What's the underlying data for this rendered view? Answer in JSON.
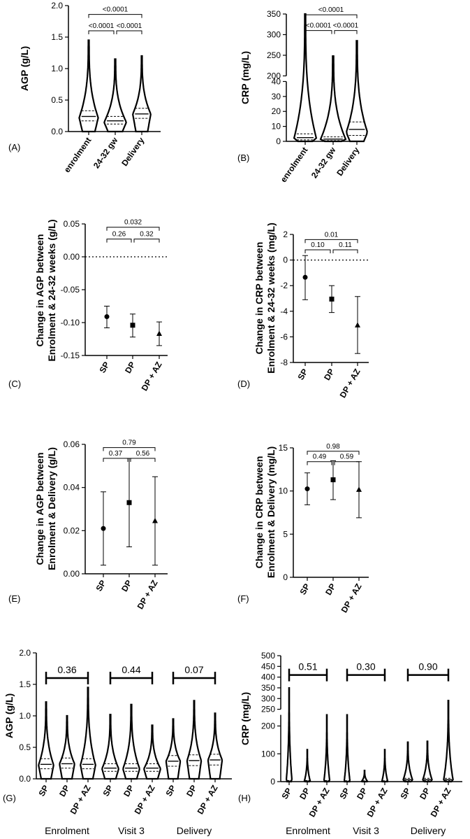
{
  "chart_data": [
    {
      "id": "A",
      "panel_label": "(A)",
      "type": "violin",
      "ylabel": "AGP (g/L)",
      "ylim": [
        0,
        2.0
      ],
      "yticks": [
        {
          "v": 0,
          "label": "0.0"
        },
        {
          "v": 0.5,
          "label": "0.5"
        },
        {
          "v": 1.0,
          "label": "1.0"
        },
        {
          "v": 1.5,
          "label": "1.5"
        },
        {
          "v": 2.0,
          "label": "2.0"
        }
      ],
      "categories": [
        "enrolment",
        "24-32 gw",
        "Delivery"
      ],
      "violins": [
        {
          "min": 0.0,
          "max": 1.45,
          "mode": 0.22,
          "w": 0.36,
          "q": [
            0.17,
            0.24,
            0.33
          ]
        },
        {
          "min": 0.0,
          "max": 1.15,
          "mode": 0.15,
          "w": 0.42,
          "q": [
            0.12,
            0.17,
            0.24
          ]
        },
        {
          "min": 0.0,
          "max": 1.2,
          "mode": 0.28,
          "w": 0.34,
          "q": [
            0.21,
            0.28,
            0.37
          ]
        }
      ],
      "brackets": [
        {
          "from": 0,
          "to": 2,
          "y": 1.86,
          "label": "<0.0001"
        },
        {
          "from": 0,
          "to": 1,
          "y": 1.6,
          "label": "<0.0001",
          "split": true
        },
        {
          "from": 1,
          "to": 2,
          "y": 1.6,
          "label": "<0.0001",
          "split": true
        }
      ]
    },
    {
      "id": "B",
      "panel_label": "(B)",
      "type": "violin",
      "ylabel": "CRP (mg/L)",
      "ylim": [
        0,
        350
      ],
      "broken_axis": [
        40,
        200
      ],
      "yticks": [
        {
          "v": 0,
          "label": "0"
        },
        {
          "v": 10,
          "label": "10"
        },
        {
          "v": 20,
          "label": "20"
        },
        {
          "v": 30,
          "label": "30"
        },
        {
          "v": 40,
          "label": "40"
        },
        {
          "v": 200,
          "label": "200"
        },
        {
          "v": 250,
          "label": "250"
        },
        {
          "v": 300,
          "label": "300"
        },
        {
          "v": 350,
          "label": "350"
        }
      ],
      "categories": [
        "enrolment",
        "24-32 gw",
        "Delivery"
      ],
      "violins": [
        {
          "min": 0,
          "max": 350,
          "mode": 2,
          "w": 0.4,
          "q": [
            1,
            2.5,
            5
          ]
        },
        {
          "min": 0,
          "max": 248,
          "mode": 1,
          "w": 0.46,
          "q": [
            0.5,
            1.5,
            3
          ]
        },
        {
          "min": 0,
          "max": 285,
          "mode": 6,
          "w": 0.38,
          "q": [
            4,
            8,
            13
          ]
        }
      ],
      "brackets": [
        {
          "from": 0,
          "to": 2,
          "y": 348,
          "label": "<0.0001"
        },
        {
          "from": 0,
          "to": 1,
          "y": 310,
          "label": "<0.0001",
          "split": true
        },
        {
          "from": 1,
          "to": 2,
          "y": 310,
          "label": "<0.0001",
          "split": true
        }
      ]
    },
    {
      "id": "C",
      "panel_label": "(C)",
      "type": "scatter_errorbar",
      "ylabel": [
        "Change in AGP between",
        "Enrolment & 24-32 weeks (g/L)"
      ],
      "ylim": [
        -0.15,
        0.05
      ],
      "yticks": [
        {
          "v": -0.15,
          "label": "-0.15"
        },
        {
          "v": -0.1,
          "label": "-0.10"
        },
        {
          "v": -0.05,
          "label": "-0.05"
        },
        {
          "v": 0,
          "label": "0.00"
        },
        {
          "v": 0.05,
          "label": "0.05"
        }
      ],
      "categories": [
        "SP",
        "DP",
        "DP + AZ"
      ],
      "points": [
        {
          "y": -0.091,
          "lo": -0.108,
          "hi": -0.075,
          "marker": "circle"
        },
        {
          "y": -0.104,
          "lo": -0.122,
          "hi": -0.087,
          "marker": "square"
        },
        {
          "y": -0.117,
          "lo": -0.135,
          "hi": -0.099,
          "marker": "triangle"
        }
      ],
      "ref_line": 0,
      "brackets": [
        {
          "from": 0,
          "to": 2,
          "y": 0.045,
          "label": "0.032"
        },
        {
          "from": 0,
          "to": 1,
          "y": 0.027,
          "label": "0.26",
          "split": true
        },
        {
          "from": 1,
          "to": 2,
          "y": 0.027,
          "label": "0.32",
          "split": true
        }
      ]
    },
    {
      "id": "D",
      "panel_label": "(D)",
      "type": "scatter_errorbar",
      "ylabel": [
        "Change in CRP between",
        "Enrolment & 24-32 weeks (mg/L)"
      ],
      "ylim": [
        -8,
        2
      ],
      "yticks": [
        {
          "v": -8,
          "label": "-8"
        },
        {
          "v": -6,
          "label": "-6"
        },
        {
          "v": -4,
          "label": "-4"
        },
        {
          "v": -2,
          "label": "-2"
        },
        {
          "v": 0,
          "label": "0"
        },
        {
          "v": 2,
          "label": "2"
        }
      ],
      "categories": [
        "SP",
        "DP",
        "DP + AZ"
      ],
      "points": [
        {
          "y": -1.35,
          "lo": -3.1,
          "hi": 0.35,
          "marker": "circle"
        },
        {
          "y": -3.05,
          "lo": -4.1,
          "hi": -2.0,
          "marker": "square"
        },
        {
          "y": -5.1,
          "lo": -7.3,
          "hi": -2.85,
          "marker": "triangle"
        }
      ],
      "ref_line": 0,
      "brackets": [
        {
          "from": 0,
          "to": 2,
          "y": 1.6,
          "label": "0.01"
        },
        {
          "from": 0,
          "to": 1,
          "y": 0.8,
          "label": "0.10",
          "split": true
        },
        {
          "from": 1,
          "to": 2,
          "y": 0.8,
          "label": "0.11",
          "split": true
        }
      ]
    },
    {
      "id": "E",
      "panel_label": "(E)",
      "type": "scatter_errorbar",
      "ylabel": [
        "Change in AGP between",
        "Enrolment & Delivery (g/L)"
      ],
      "ylim": [
        0,
        0.06
      ],
      "yticks": [
        {
          "v": 0,
          "label": "0.00"
        },
        {
          "v": 0.02,
          "label": "0.02"
        },
        {
          "v": 0.04,
          "label": "0.04"
        },
        {
          "v": 0.06,
          "label": "0.06"
        }
      ],
      "categories": [
        "SP",
        "DP",
        "DP + AZ"
      ],
      "points": [
        {
          "y": 0.021,
          "lo": 0.004,
          "hi": 0.038,
          "marker": "circle"
        },
        {
          "y": 0.033,
          "lo": 0.0125,
          "hi": 0.0535,
          "marker": "square"
        },
        {
          "y": 0.0245,
          "lo": 0.004,
          "hi": 0.045,
          "marker": "triangle"
        }
      ],
      "brackets": [
        {
          "from": 0,
          "to": 2,
          "y": 0.0585,
          "label": "0.79"
        },
        {
          "from": 0,
          "to": 1,
          "y": 0.0535,
          "label": "0.37",
          "split": true
        },
        {
          "from": 1,
          "to": 2,
          "y": 0.0535,
          "label": "0.56",
          "split": true
        }
      ]
    },
    {
      "id": "F",
      "panel_label": "(F)",
      "type": "scatter_errorbar",
      "ylabel": [
        "Change in CRP between",
        "Enrolment & Delivery (mg/L)"
      ],
      "ylim": [
        0,
        15
      ],
      "yticks": [
        {
          "v": 0,
          "label": "0"
        },
        {
          "v": 5,
          "label": "5"
        },
        {
          "v": 10,
          "label": "10"
        },
        {
          "v": 15,
          "label": "15"
        }
      ],
      "categories": [
        "SP",
        "DP",
        "DP + AZ"
      ],
      "points": [
        {
          "y": 10.25,
          "lo": 8.4,
          "hi": 12.1,
          "marker": "circle"
        },
        {
          "y": 11.3,
          "lo": 9.0,
          "hi": 13.5,
          "marker": "square"
        },
        {
          "y": 10.15,
          "lo": 6.9,
          "hi": 13.4,
          "marker": "triangle"
        }
      ],
      "brackets": [
        {
          "from": 0,
          "to": 2,
          "y": 14.6,
          "label": "0.98"
        },
        {
          "from": 0,
          "to": 1,
          "y": 13.4,
          "label": "0.49",
          "split": true
        },
        {
          "from": 1,
          "to": 2,
          "y": 13.4,
          "label": "0.59",
          "split": true
        }
      ]
    },
    {
      "id": "G",
      "panel_label": "(G)",
      "type": "violin",
      "ylabel": "AGP (g/L)",
      "ylim": [
        0,
        2.0
      ],
      "yticks": [
        {
          "v": 0,
          "label": "0.0"
        },
        {
          "v": 0.5,
          "label": "0.5"
        },
        {
          "v": 1.0,
          "label": "1.0"
        },
        {
          "v": 1.5,
          "label": "1.5"
        },
        {
          "v": 2.0,
          "label": "2.0"
        }
      ],
      "categories": [
        "SP",
        "DP",
        "DP + AZ",
        "SP",
        "DP",
        "DP + AZ",
        "SP",
        "DP",
        "DP + AZ"
      ],
      "groups": [
        {
          "label": "Enrolment",
          "from": 0,
          "to": 2
        },
        {
          "label": "Visit 3",
          "from": 3,
          "to": 5
        },
        {
          "label": "Delivery",
          "from": 6,
          "to": 8
        }
      ],
      "violins": [
        {
          "min": 0,
          "max": 1.22,
          "mode": 0.22,
          "w": 0.36,
          "q": [
            0.16,
            0.23,
            0.32
          ]
        },
        {
          "min": 0,
          "max": 1.0,
          "mode": 0.24,
          "w": 0.36,
          "q": [
            0.17,
            0.24,
            0.33
          ]
        },
        {
          "min": 0,
          "max": 1.45,
          "mode": 0.22,
          "w": 0.36,
          "q": [
            0.16,
            0.23,
            0.32
          ]
        },
        {
          "min": 0,
          "max": 1.02,
          "mode": 0.16,
          "w": 0.4,
          "q": [
            0.12,
            0.17,
            0.24
          ]
        },
        {
          "min": 0,
          "max": 1.18,
          "mode": 0.16,
          "w": 0.4,
          "q": [
            0.12,
            0.17,
            0.24
          ]
        },
        {
          "min": 0,
          "max": 0.85,
          "mode": 0.16,
          "w": 0.4,
          "q": [
            0.12,
            0.17,
            0.24
          ]
        },
        {
          "min": 0,
          "max": 0.95,
          "mode": 0.28,
          "w": 0.34,
          "q": [
            0.2,
            0.28,
            0.37
          ]
        },
        {
          "min": 0,
          "max": 1.24,
          "mode": 0.29,
          "w": 0.34,
          "q": [
            0.21,
            0.29,
            0.38
          ]
        },
        {
          "min": 0,
          "max": 1.04,
          "mode": 0.3,
          "w": 0.34,
          "q": [
            0.22,
            0.3,
            0.39
          ]
        }
      ],
      "brackets": [
        {
          "from": 0,
          "to": 2,
          "y": 1.6,
          "label": "0.36",
          "big": true
        },
        {
          "from": 3,
          "to": 5,
          "y": 1.6,
          "label": "0.44",
          "big": true
        },
        {
          "from": 6,
          "to": 8,
          "y": 1.6,
          "label": "0.07",
          "big": true
        }
      ]
    },
    {
      "id": "H",
      "panel_label": "(H)",
      "type": "violin",
      "ylabel": "CRP (mg/L)",
      "ylim": [
        0,
        500
      ],
      "broken_axis": [
        240,
        250
      ],
      "yticks": [
        {
          "v": 0,
          "label": "0"
        },
        {
          "v": 100,
          "label": "100"
        },
        {
          "v": 200,
          "label": "200"
        },
        {
          "v": 250,
          "label": "250"
        },
        {
          "v": 300,
          "label": "300"
        },
        {
          "v": 350,
          "label": "350"
        },
        {
          "v": 400,
          "label": "400"
        },
        {
          "v": 450,
          "label": "450"
        },
        {
          "v": 500,
          "label": "500"
        }
      ],
      "categories": [
        "SP",
        "DP",
        "DP + AZ",
        "SP",
        "DP",
        "DP + AZ",
        "SP",
        "DP",
        "DP + AZ"
      ],
      "groups": [
        {
          "label": "Enrolment",
          "from": 0,
          "to": 2
        },
        {
          "label": "Visit 3",
          "from": 3,
          "to": 5
        },
        {
          "label": "Delivery",
          "from": 6,
          "to": 8
        }
      ],
      "violins": [
        {
          "min": 0,
          "max": 350,
          "mode": 2,
          "w": 0.16,
          "q": [
            1,
            2,
            4
          ]
        },
        {
          "min": 0,
          "max": 115,
          "mode": 2,
          "w": 0.16,
          "q": [
            1,
            2,
            4
          ]
        },
        {
          "min": 0,
          "max": 240,
          "mode": 2,
          "w": 0.16,
          "q": [
            1,
            2,
            4
          ]
        },
        {
          "min": 0,
          "max": 240,
          "mode": 1,
          "w": 0.16,
          "q": [
            0.5,
            1,
            3
          ]
        },
        {
          "min": 0,
          "max": 40,
          "mode": 1,
          "w": 0.16,
          "q": [
            0.5,
            1,
            3
          ]
        },
        {
          "min": 0,
          "max": 115,
          "mode": 1,
          "w": 0.16,
          "q": [
            0.5,
            1,
            3
          ]
        },
        {
          "min": 0,
          "max": 142,
          "mode": 6,
          "w": 0.26,
          "q": [
            3,
            7,
            12
          ]
        },
        {
          "min": 0,
          "max": 145,
          "mode": 6,
          "w": 0.26,
          "q": [
            3,
            7,
            12
          ]
        },
        {
          "min": 0,
          "max": 290,
          "mode": 6,
          "w": 0.26,
          "q": [
            3,
            7,
            12
          ]
        }
      ],
      "brackets": [
        {
          "from": 0,
          "to": 2,
          "y": 410,
          "label": "0.51",
          "big": true
        },
        {
          "from": 3,
          "to": 5,
          "y": 410,
          "label": "0.30",
          "big": true
        },
        {
          "from": 6,
          "to": 8,
          "y": 410,
          "label": "0.90",
          "big": true
        }
      ]
    }
  ]
}
